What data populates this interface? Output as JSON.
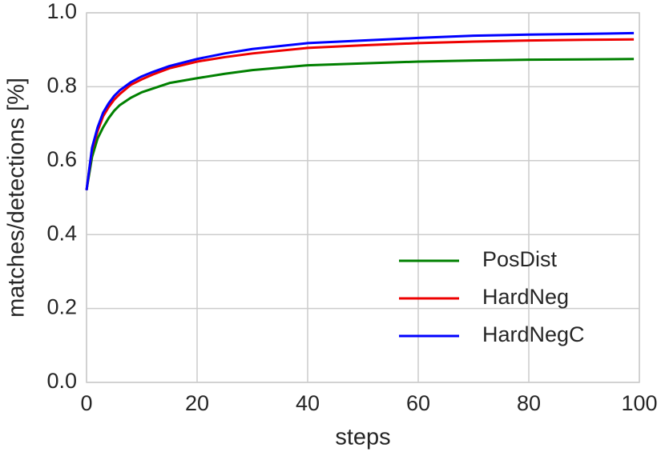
{
  "chart_data": {
    "type": "line",
    "xlabel": "steps",
    "ylabel": "matches/detections [%]",
    "x": [
      0,
      1,
      2,
      3,
      4,
      5,
      6,
      8,
      10,
      12,
      15,
      20,
      25,
      30,
      40,
      50,
      60,
      70,
      80,
      90,
      99
    ],
    "series": [
      {
        "name": "PosDist",
        "color": "#008000",
        "values": [
          0.52,
          0.61,
          0.66,
          0.69,
          0.715,
          0.735,
          0.75,
          0.77,
          0.785,
          0.795,
          0.81,
          0.823,
          0.835,
          0.845,
          0.858,
          0.863,
          0.868,
          0.871,
          0.873,
          0.874,
          0.875
        ]
      },
      {
        "name": "HardNeg",
        "color": "#ee0000",
        "values": [
          0.52,
          0.63,
          0.68,
          0.72,
          0.745,
          0.765,
          0.78,
          0.805,
          0.82,
          0.833,
          0.85,
          0.868,
          0.88,
          0.89,
          0.905,
          0.912,
          0.918,
          0.922,
          0.925,
          0.927,
          0.928
        ]
      },
      {
        "name": "HardNegC",
        "color": "#0000ff",
        "values": [
          0.52,
          0.635,
          0.69,
          0.73,
          0.755,
          0.775,
          0.79,
          0.812,
          0.828,
          0.84,
          0.856,
          0.875,
          0.89,
          0.902,
          0.918,
          0.925,
          0.932,
          0.938,
          0.941,
          0.943,
          0.945
        ]
      }
    ],
    "xlim": [
      0,
      100
    ],
    "xticks": [
      0,
      20,
      40,
      60,
      80,
      100
    ],
    "ylim": [
      0,
      1
    ],
    "yticks": [
      {
        "value": 0,
        "label": "0.0"
      },
      {
        "value": 0.2,
        "label": "0.2"
      },
      {
        "value": 0.4,
        "label": "0.4"
      },
      {
        "value": 0.6,
        "label": "0.6"
      },
      {
        "value": 0.8,
        "label": "0.8"
      },
      {
        "value": 1,
        "label": "1.0"
      }
    ],
    "grid": true,
    "legend": "lower right"
  }
}
